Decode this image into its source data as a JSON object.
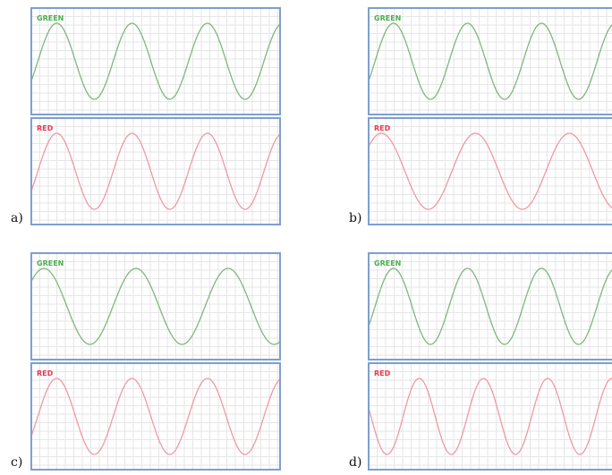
{
  "colors": {
    "green": "#7fb77e",
    "red": "#ee9aa4",
    "green_text": "#4caf50",
    "red_text": "#e83b50",
    "frame": "#7d9fd0",
    "grid": "#e6e6e6"
  },
  "panels": [
    {
      "letter": "a)",
      "traces": [
        {
          "title": "GREEN",
          "color_key": "green",
          "text_key": "green_text",
          "cycles": 3.3,
          "phase": 0.0
        },
        {
          "title": "RED",
          "color_key": "red",
          "text_key": "red_text",
          "cycles": 3.3,
          "phase": 0.0
        }
      ]
    },
    {
      "letter": "b)",
      "traces": [
        {
          "title": "GREEN",
          "color_key": "green",
          "text_key": "green_text",
          "cycles": 3.3,
          "phase": 0.0
        },
        {
          "title": "RED",
          "color_key": "red",
          "text_key": "red_text",
          "cycles": 2.6,
          "phase": 0.2
        }
      ]
    },
    {
      "letter": "c)",
      "traces": [
        {
          "title": "GREEN",
          "color_key": "green",
          "text_key": "green_text",
          "cycles": 2.7,
          "phase": 0.2
        },
        {
          "title": "RED",
          "color_key": "red",
          "text_key": "red_text",
          "cycles": 3.3,
          "phase": 0.0
        }
      ]
    },
    {
      "letter": "d)",
      "traces": [
        {
          "title": "GREEN",
          "color_key": "green",
          "text_key": "green_text",
          "cycles": 3.3,
          "phase": 0.0
        },
        {
          "title": "RED",
          "color_key": "red",
          "text_key": "red_text",
          "cycles": 3.8,
          "phase": 0.55
        }
      ]
    }
  ]
}
